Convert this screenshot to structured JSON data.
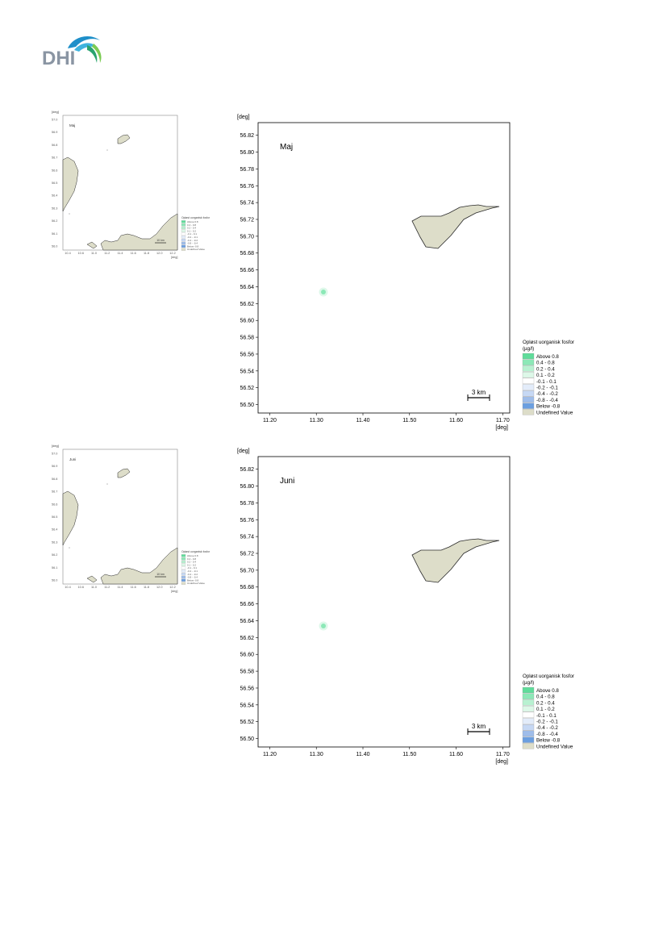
{
  "logo": {
    "text": "DHI"
  },
  "colors": {
    "land": "#ddddc9",
    "land_stroke": "#2a2a2a",
    "frame": "#000000",
    "above_0_8": "#5fdc9a",
    "0_4_0_8": "#8ce8b7",
    "0_2_0_4": "#b8f1d1",
    "0_1_0_2": "#ddf8e8",
    "neg_0_1_0_1": "#ffffff",
    "neg_0_2_neg_0_1": "#e3ecfa",
    "neg_0_4_neg_0_2": "#c6d8f4",
    "neg_0_8_neg_0_4": "#9fbdea",
    "below_neg_0_8": "#6b9fe0",
    "undefined": "#ddddc9"
  },
  "panels": [
    {
      "id": "maj",
      "month_label": "Maj",
      "overview": {
        "y_unit": "[deg]",
        "x_unit": "[deg]",
        "y_ticks": [
          "57.0",
          "56.9",
          "56.8",
          "56.7",
          "56.6",
          "56.5",
          "56.4",
          "56.3",
          "56.2",
          "56.1",
          "56.0"
        ],
        "x_ticks": [
          "10.4",
          "10.6",
          "11.0",
          "11.2",
          "11.4",
          "11.6",
          "11.8",
          "12.0",
          "12.2"
        ],
        "scale_label": "10 km",
        "legend_title": "Opløst uorganisk fosfor",
        "legend_items": [
          "Above 0.8",
          "0.4 - 0.8",
          "0.2 - 0.4",
          "0.1 - 0.2",
          "-0.1 - 0.1",
          "-0.2 - -0.1",
          "-0.4 - -0.2",
          "-0.8 - -0.4",
          "Below -0.8",
          "Undefined Value"
        ]
      },
      "map": {
        "y_unit": "[deg]",
        "x_unit": "[deg]",
        "y_ticks": [
          "56.82",
          "56.80",
          "56.78",
          "56.76",
          "56.74",
          "56.72",
          "56.70",
          "56.68",
          "56.66",
          "56.64",
          "56.62",
          "56.60",
          "56.58",
          "56.56",
          "56.54",
          "56.52",
          "56.50"
        ],
        "x_ticks": [
          "11.20",
          "11.30",
          "11.40",
          "11.50",
          "11.60",
          "11.70"
        ],
        "scale_label": "3 km"
      },
      "legend": {
        "title": "Opløst uorganisk fosfor",
        "unit": "(µg/l)",
        "items": [
          "Above  0.8",
          "0.4 -  0.8",
          "0.2 -  0.4",
          "0.1 -  0.2",
          "-0.1 -  0.1",
          "-0.2 - -0.1",
          "-0.4 - -0.2",
          "-0.8 - -0.4",
          "Below -0.8",
          "Undefined Value"
        ],
        "colors": [
          "#5fdc9a",
          "#8ce8b7",
          "#b8f1d1",
          "#ddf8e8",
          "#ffffff",
          "#e3ecfa",
          "#c6d8f4",
          "#9fbdea",
          "#6b9fe0",
          "#ddddc9"
        ]
      }
    },
    {
      "id": "juni",
      "month_label": "Juni",
      "overview": {
        "y_unit": "[deg]",
        "x_unit": "[deg]",
        "y_ticks": [
          "57.0",
          "56.9",
          "56.8",
          "56.7",
          "56.6",
          "56.5",
          "56.4",
          "56.3",
          "56.2",
          "56.1",
          "56.0"
        ],
        "x_ticks": [
          "10.4",
          "10.6",
          "11.0",
          "11.2",
          "11.4",
          "11.6",
          "11.8",
          "12.0",
          "12.2"
        ],
        "scale_label": "10 km",
        "legend_title": "Opløst uorganisk fosfor",
        "legend_items": [
          "Above 0.8",
          "0.4 - 0.8",
          "0.2 - 0.4",
          "0.1 - 0.2",
          "-0.1 - 0.1",
          "-0.2 - -0.1",
          "-0.4 - -0.2",
          "-0.8 - -0.4",
          "Below -0.8",
          "Undefined Value"
        ]
      },
      "map": {
        "y_unit": "[deg]",
        "x_unit": "[deg]",
        "y_ticks": [
          "56.82",
          "56.80",
          "56.78",
          "56.76",
          "56.74",
          "56.72",
          "56.70",
          "56.68",
          "56.66",
          "56.64",
          "56.62",
          "56.60",
          "56.58",
          "56.56",
          "56.54",
          "56.52",
          "56.50"
        ],
        "x_ticks": [
          "11.20",
          "11.30",
          "11.40",
          "11.50",
          "11.60",
          "11.70"
        ],
        "scale_label": "3 km"
      },
      "legend": {
        "title": "Opløst uorganisk fosfor",
        "unit": "(µg/l)",
        "items": [
          "Above  0.8",
          "0.4 -  0.8",
          "0.2 -  0.4",
          "0.1 -  0.2",
          "-0.1 -  0.1",
          "-0.2 - -0.1",
          "-0.4 - -0.2",
          "-0.8 - -0.4",
          "Below -0.8",
          "Undefined Value"
        ],
        "colors": [
          "#5fdc9a",
          "#8ce8b7",
          "#b8f1d1",
          "#ddf8e8",
          "#ffffff",
          "#e3ecfa",
          "#c6d8f4",
          "#9fbdea",
          "#6b9fe0",
          "#ddddc9"
        ]
      }
    }
  ]
}
